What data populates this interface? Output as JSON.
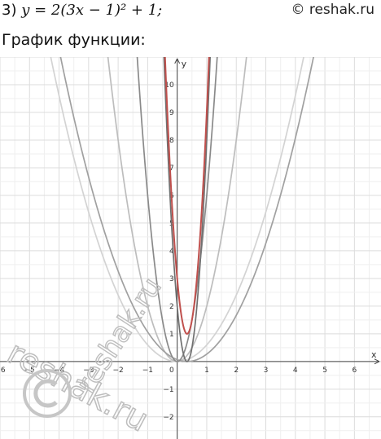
{
  "problem": {
    "prefix": "3)",
    "formula": "y = 2(3x − 1)² + 1;"
  },
  "copyright": "© reshak.ru",
  "subtitle": "График функции:",
  "watermark": {
    "text": "reshak.ru"
  },
  "chart_data": {
    "type": "line",
    "xlabel": "x",
    "ylabel": "y",
    "xlim": [
      -6.0,
      6.9
    ],
    "ylim": [
      -2.8,
      11.0
    ],
    "grid": true,
    "x_ticks": [
      -6,
      -5,
      -4,
      -3,
      -2,
      -1,
      0,
      1,
      2,
      3,
      4,
      5,
      6
    ],
    "y_ticks": [
      -2,
      -1,
      1,
      2,
      3,
      4,
      5,
      6,
      7,
      8,
      9,
      10
    ],
    "series": [
      {
        "formula": "y = 0.6x²",
        "color": "#d3d3d3",
        "a": 0.6,
        "b": 0,
        "k": 0
      },
      {
        "formula": "y = 2x²",
        "color": "#bdbdbd",
        "a": 2,
        "b": 0,
        "k": 0
      },
      {
        "formula": "y = 0.6(x − 0.33)²",
        "color": "#a0a0a0",
        "a": 0.6,
        "b": 0.333,
        "k": 0
      },
      {
        "formula": "y = 6x²",
        "color": "#8a8a8a",
        "a": 6,
        "b": 0,
        "k": 0
      },
      {
        "formula": "y = 18(x − 0.33)²",
        "color": "#707070",
        "a": 18,
        "b": 0.333,
        "k": 0
      },
      {
        "formula": "y = 18(x − 0.33)² + 1",
        "color": "#c0504d",
        "a": 18,
        "b": 0.333,
        "k": 1
      }
    ]
  }
}
